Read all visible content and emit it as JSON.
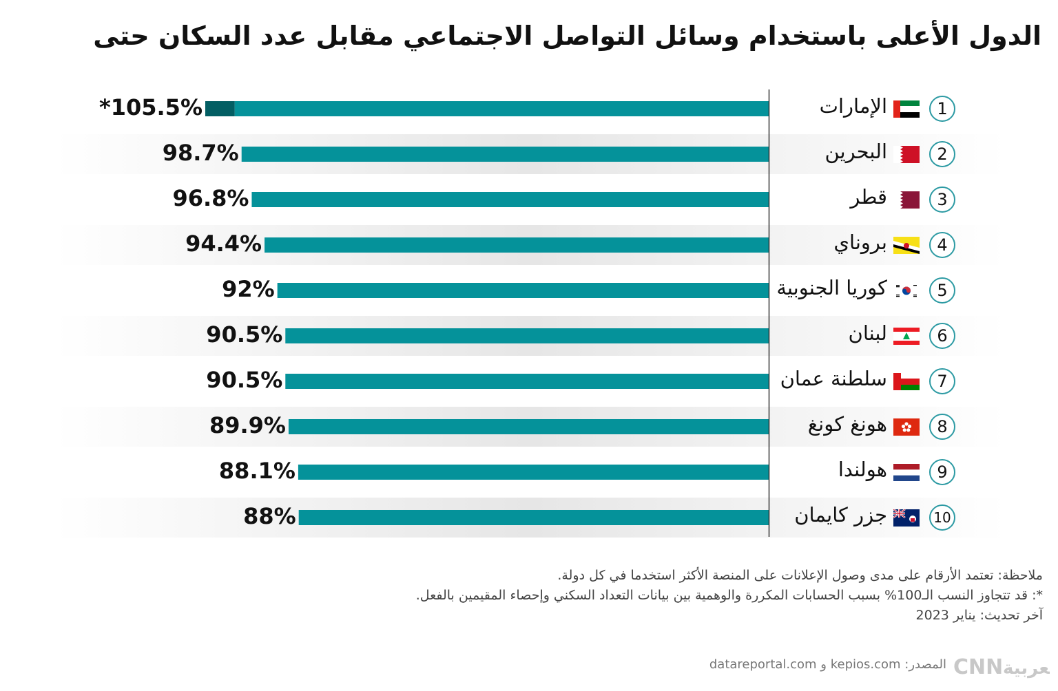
{
  "title": "الدول الأعلى باستخدام وسائل التواصل الاجتماعي مقابل عدد السكان حتى",
  "chart_data": {
    "type": "bar",
    "orientation": "horizontal",
    "categories": [
      "الإمارات",
      "البحرين",
      "قطر",
      "بروناي",
      "كوريا الجنوبية",
      "لبنان",
      "سلطنة عمان",
      "هونغ كونغ",
      "هولندا",
      "جزر كايمان"
    ],
    "ranks": [
      "1",
      "2",
      "3",
      "4",
      "5",
      "6",
      "7",
      "8",
      "9",
      "10"
    ],
    "values": [
      105.5,
      98.7,
      96.8,
      94.4,
      92,
      90.5,
      90.5,
      89.9,
      88.1,
      88
    ],
    "value_labels": [
      "*105.5%",
      "98.7%",
      "96.8%",
      "94.4%",
      "92%",
      "90.5%",
      "90.5%",
      "89.9%",
      "88.1%",
      "88%"
    ],
    "flags": [
      "uae-flag-icon",
      "bahrain-flag-icon",
      "qatar-flag-icon",
      "brunei-flag-icon",
      "south-korea-flag-icon",
      "lebanon-flag-icon",
      "oman-flag-icon",
      "hong-kong-flag-icon",
      "netherlands-flag-icon",
      "cayman-islands-flag-icon"
    ],
    "bar_color": "#05929a",
    "overflow_color": "#035e63",
    "xlim": [
      0,
      105.5
    ]
  },
  "notes": {
    "line1": "ملاحظة: تعتمد الأرقام على مدى وصول الإعلانات على المنصة الأكثر استخدما في كل دولة.",
    "line2": "*: قد تتجاوز النسب الـ100% بسبب الحسابات المكررة والوهمية بين بيانات التعداد السكني وإحصاء المقيمين بالفعل.",
    "line3": "آخر تحديث: يناير 2023"
  },
  "source": "المصدر: kepios.com و datareportal.com",
  "logo_text": "CNN بالعربية"
}
